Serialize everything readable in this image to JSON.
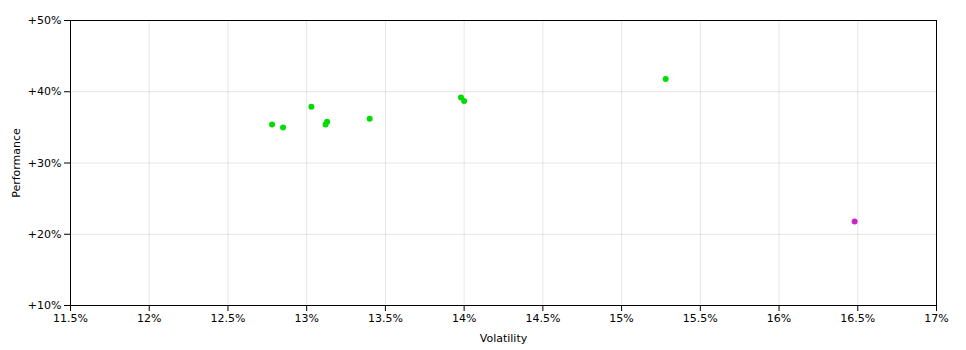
{
  "chart_data": {
    "type": "scatter",
    "xlabel": "Volatility",
    "ylabel": "Performance",
    "xlim": [
      0.115,
      0.17
    ],
    "ylim": [
      0.1,
      0.5
    ],
    "xticks": [
      {
        "value": 0.115,
        "label": "11.5%"
      },
      {
        "value": 0.12,
        "label": "12%"
      },
      {
        "value": 0.125,
        "label": "12.5%"
      },
      {
        "value": 0.13,
        "label": "13%"
      },
      {
        "value": 0.135,
        "label": "13.5%"
      },
      {
        "value": 0.14,
        "label": "14%"
      },
      {
        "value": 0.145,
        "label": "14.5%"
      },
      {
        "value": 0.15,
        "label": "15%"
      },
      {
        "value": 0.155,
        "label": "15.5%"
      },
      {
        "value": 0.16,
        "label": "16%"
      },
      {
        "value": 0.165,
        "label": "16.5%"
      },
      {
        "value": 0.17,
        "label": "17%"
      }
    ],
    "yticks": [
      {
        "value": 0.1,
        "label": "+10%"
      },
      {
        "value": 0.2,
        "label": "+20%"
      },
      {
        "value": 0.3,
        "label": "+30%"
      },
      {
        "value": 0.4,
        "label": "+40%"
      },
      {
        "value": 0.5,
        "label": "+50%"
      }
    ],
    "grid": true,
    "series": [
      {
        "color": "#00dd00",
        "x": [
          0.1278,
          0.1285,
          0.1303,
          0.1312,
          0.1313,
          0.134,
          0.1398,
          0.14,
          0.1528
        ],
        "values": [
          0.354,
          0.35,
          0.379,
          0.354,
          0.358,
          0.362,
          0.392,
          0.387,
          0.418
        ]
      },
      {
        "color": "#cc22cc",
        "x": [
          0.1648
        ],
        "values": [
          0.218
        ]
      }
    ]
  }
}
